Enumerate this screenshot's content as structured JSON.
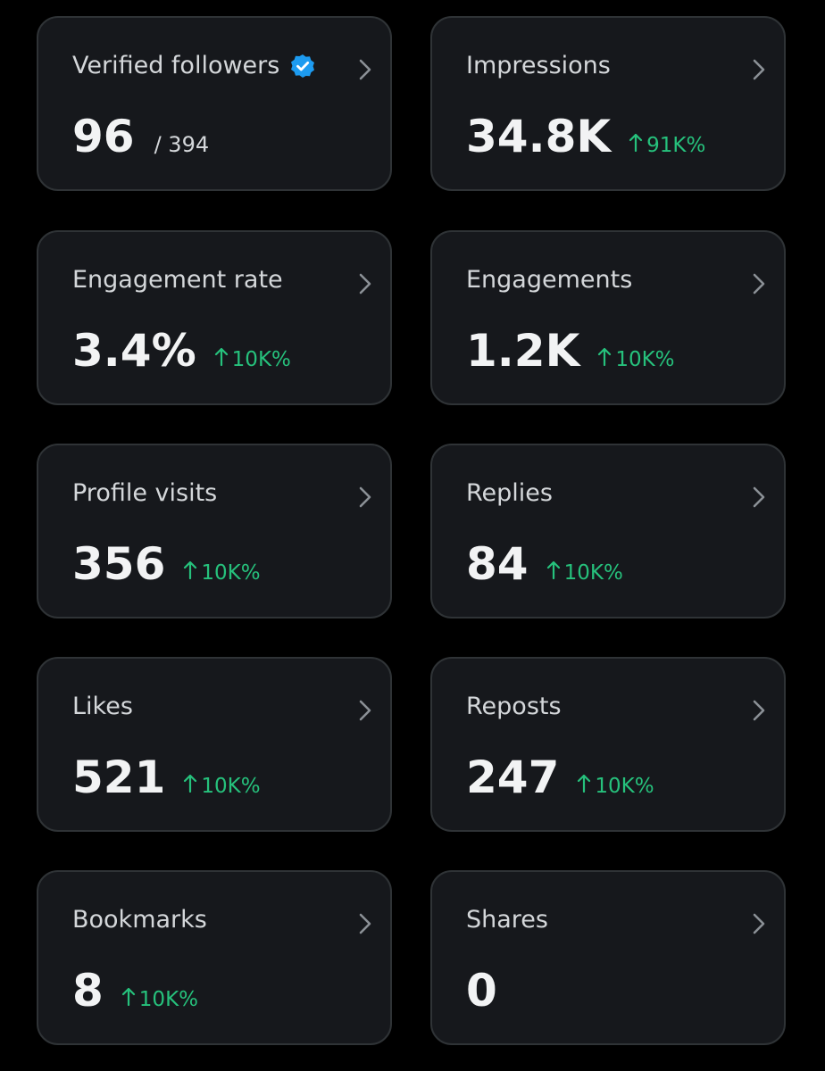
{
  "cards": [
    {
      "label": "Verified followers",
      "verified_badge": true,
      "value": "96",
      "total": "/ 394"
    },
    {
      "label": "Impressions",
      "value": "34.8K",
      "change": "91K%"
    },
    {
      "label": "Engagement rate",
      "value": "3.4%",
      "change": "10K%"
    },
    {
      "label": "Engagements",
      "value": "1.2K",
      "change": "10K%"
    },
    {
      "label": "Profile visits",
      "value": "356",
      "change": "10K%"
    },
    {
      "label": "Replies",
      "value": "84",
      "change": "10K%"
    },
    {
      "label": "Likes",
      "value": "521",
      "change": "10K%"
    },
    {
      "label": "Reposts",
      "value": "247",
      "change": "10K%"
    },
    {
      "label": "Bookmarks",
      "value": "8",
      "change": "10K%"
    },
    {
      "label": "Shares",
      "value": "0"
    }
  ]
}
